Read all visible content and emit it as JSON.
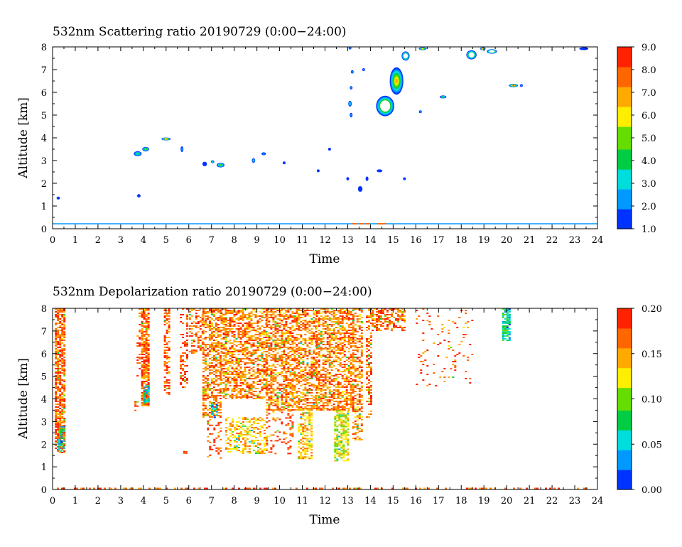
{
  "chart_data": [
    {
      "type": "heatmap",
      "title": "532nm Scattering ratio  20190729 (0:00−24:00)",
      "xlabel": "Time",
      "ylabel": "Altitude [km]",
      "xlim": [
        0,
        24
      ],
      "ylim": [
        0,
        8
      ],
      "x_ticks": [
        "0",
        "1",
        "2",
        "3",
        "4",
        "5",
        "6",
        "7",
        "8",
        "9",
        "10",
        "11",
        "12",
        "13",
        "14",
        "15",
        "16",
        "17",
        "18",
        "19",
        "20",
        "21",
        "22",
        "23",
        "24"
      ],
      "y_ticks": [
        "0",
        "1",
        "2",
        "3",
        "4",
        "5",
        "6",
        "7",
        "8"
      ],
      "colorbar": {
        "min": 1.0,
        "max": 9.0,
        "ticks": [
          "1.0",
          "2.0",
          "3.0",
          "4.0",
          "5.0",
          "6.0",
          "7.0",
          "8.0",
          "9.0"
        ],
        "tick_values": [
          1.0,
          2.0,
          3.0,
          4.0,
          5.0,
          6.0,
          7.0,
          8.0,
          9.0
        ],
        "colors": [
          "#0033ff",
          "#0099ff",
          "#00dddd",
          "#00cc44",
          "#66dd00",
          "#ffee00",
          "#ffaa00",
          "#ff6600",
          "#ff2200"
        ]
      },
      "features": [
        {
          "kind": "line",
          "x0": 0.0,
          "x1": 24.0,
          "y": 0.22,
          "value": 2.5
        },
        {
          "kind": "blob",
          "x": 0.25,
          "y": 1.35,
          "w": 0.15,
          "h": 0.08,
          "value": 2.0
        },
        {
          "kind": "blob",
          "x": 3.8,
          "y": 1.45,
          "w": 0.15,
          "h": 0.15,
          "value": 2.2
        },
        {
          "kind": "blob",
          "x": 3.75,
          "y": 3.3,
          "w": 0.35,
          "h": 0.22,
          "value": 4.5
        },
        {
          "kind": "blob",
          "x": 4.1,
          "y": 3.5,
          "w": 0.3,
          "h": 0.2,
          "value": 5.5
        },
        {
          "kind": "blob",
          "x": 5.0,
          "y": 3.95,
          "w": 0.4,
          "h": 0.1,
          "value": 7.0
        },
        {
          "kind": "blob",
          "x": 5.7,
          "y": 3.5,
          "w": 0.12,
          "h": 0.25,
          "value": 2.5
        },
        {
          "kind": "blob",
          "x": 6.7,
          "y": 2.85,
          "w": 0.2,
          "h": 0.2,
          "value": 2.3
        },
        {
          "kind": "blob",
          "x": 7.05,
          "y": 2.95,
          "w": 0.15,
          "h": 0.12,
          "value": 4.0
        },
        {
          "kind": "blob",
          "x": 7.4,
          "y": 2.8,
          "w": 0.35,
          "h": 0.2,
          "value": 5.0
        },
        {
          "kind": "blob",
          "x": 8.85,
          "y": 3.0,
          "w": 0.15,
          "h": 0.2,
          "value": 3.5
        },
        {
          "kind": "blob",
          "x": 9.3,
          "y": 3.3,
          "w": 0.2,
          "h": 0.12,
          "value": 2.5
        },
        {
          "kind": "blob",
          "x": 10.2,
          "y": 2.9,
          "w": 0.05,
          "h": 0.12,
          "value": 2.0
        },
        {
          "kind": "blob",
          "x": 11.7,
          "y": 2.55,
          "w": 0.05,
          "h": 0.1,
          "value": 2.0
        },
        {
          "kind": "blob",
          "x": 12.2,
          "y": 3.5,
          "w": 0.05,
          "h": 0.12,
          "value": 2.0
        },
        {
          "kind": "blob",
          "x": 13.0,
          "y": 2.2,
          "w": 0.05,
          "h": 0.15,
          "value": 2.0
        },
        {
          "kind": "blob",
          "x": 13.55,
          "y": 1.75,
          "w": 0.2,
          "h": 0.25,
          "value": 2.2
        },
        {
          "kind": "blob",
          "x": 13.85,
          "y": 2.2,
          "w": 0.12,
          "h": 0.2,
          "value": 2.0
        },
        {
          "kind": "blob",
          "x": 14.4,
          "y": 2.55,
          "w": 0.25,
          "h": 0.12,
          "value": 2.2
        },
        {
          "kind": "blob",
          "x": 15.5,
          "y": 2.2,
          "w": 0.05,
          "h": 0.08,
          "value": 2.0
        },
        {
          "kind": "blob",
          "x": 13.1,
          "y": 5.5,
          "w": 0.15,
          "h": 0.25,
          "value": 3.5
        },
        {
          "kind": "blob",
          "x": 13.15,
          "y": 5.0,
          "w": 0.12,
          "h": 0.2,
          "value": 3.0
        },
        {
          "kind": "blob",
          "x": 13.15,
          "y": 6.2,
          "w": 0.05,
          "h": 0.15,
          "value": 2.5
        },
        {
          "kind": "blob",
          "x": 13.2,
          "y": 6.9,
          "w": 0.05,
          "h": 0.15,
          "value": 2.5
        },
        {
          "kind": "blob",
          "x": 13.7,
          "y": 7.0,
          "w": 0.05,
          "h": 0.1,
          "value": 2.5
        },
        {
          "kind": "blob",
          "x": 13.1,
          "y": 7.95,
          "w": 0.08,
          "h": 0.05,
          "value": 2.5
        },
        {
          "kind": "blob",
          "x": 16.2,
          "y": 5.15,
          "w": 0.08,
          "h": 0.08,
          "value": 2.5
        },
        {
          "kind": "blob",
          "x": 17.2,
          "y": 5.8,
          "w": 0.3,
          "h": 0.1,
          "value": 4.5
        },
        {
          "kind": "blob",
          "x": 20.3,
          "y": 6.3,
          "w": 0.4,
          "h": 0.15,
          "value": 8.5
        },
        {
          "kind": "blob",
          "x": 20.65,
          "y": 6.3,
          "w": 0.12,
          "h": 0.1,
          "value": 2.5
        },
        {
          "kind": "blob",
          "x": 23.4,
          "y": 7.92,
          "w": 0.4,
          "h": 0.1,
          "value": 2.0
        },
        {
          "kind": "cloud",
          "x": 14.65,
          "y": 5.4,
          "w": 0.8,
          "h": 0.9,
          "value": 9.0
        },
        {
          "kind": "cloud",
          "x": 15.15,
          "y": 6.5,
          "w": 0.6,
          "h": 1.2,
          "value": 7.5
        },
        {
          "kind": "cloud",
          "x": 15.55,
          "y": 7.6,
          "w": 0.35,
          "h": 0.4,
          "value": 8.0
        },
        {
          "kind": "cloud",
          "x": 16.3,
          "y": 7.92,
          "w": 0.35,
          "h": 0.12,
          "value": 6.0
        },
        {
          "kind": "cloud",
          "x": 18.45,
          "y": 7.65,
          "w": 0.45,
          "h": 0.4,
          "value": 8.5
        },
        {
          "kind": "cloud",
          "x": 19.35,
          "y": 7.8,
          "w": 0.45,
          "h": 0.2,
          "value": 8.0
        },
        {
          "kind": "cloud",
          "x": 18.95,
          "y": 7.92,
          "w": 0.25,
          "h": 0.1,
          "value": 7.0
        }
      ]
    },
    {
      "type": "heatmap",
      "title": "532nm Depolarization ratio  20190729 (0:00−24:00)",
      "xlabel": "Time",
      "ylabel": "Altitude [km]",
      "xlim": [
        0,
        24
      ],
      "ylim": [
        0,
        8
      ],
      "x_ticks": [
        "0",
        "1",
        "2",
        "3",
        "4",
        "5",
        "6",
        "7",
        "8",
        "9",
        "10",
        "11",
        "12",
        "13",
        "14",
        "15",
        "16",
        "17",
        "18",
        "19",
        "20",
        "21",
        "22",
        "23",
        "24"
      ],
      "y_ticks": [
        "0",
        "1",
        "2",
        "3",
        "4",
        "5",
        "6",
        "7",
        "8"
      ],
      "colorbar": {
        "min": 0.0,
        "max": 0.2,
        "ticks": [
          "0.00",
          "0.05",
          "0.10",
          "0.15",
          "0.20"
        ],
        "tick_values": [
          0.0,
          0.05,
          0.1,
          0.15,
          0.2
        ],
        "colors": [
          "#0033ff",
          "#0099ff",
          "#00dddd",
          "#00cc44",
          "#66dd00",
          "#ffee00",
          "#ffaa00",
          "#ff6600",
          "#ff2200"
        ]
      },
      "regions": [
        {
          "x0": 0.1,
          "x1": 0.5,
          "y0": 1.6,
          "y1": 8.0,
          "density": 0.75,
          "value": 0.17
        },
        {
          "x0": 0.25,
          "x1": 0.45,
          "y0": 1.7,
          "y1": 2.8,
          "density": 0.7,
          "value": 0.06
        },
        {
          "x0": 3.6,
          "x1": 3.75,
          "y0": 3.5,
          "y1": 3.9,
          "density": 0.6,
          "value": 0.17
        },
        {
          "x0": 3.7,
          "x1": 3.8,
          "y0": 5.0,
          "y1": 8.0,
          "density": 0.25,
          "value": 0.18
        },
        {
          "x0": 3.9,
          "x1": 4.2,
          "y0": 3.7,
          "y1": 8.0,
          "density": 0.8,
          "value": 0.17
        },
        {
          "x0": 4.0,
          "x1": 4.2,
          "y0": 3.8,
          "y1": 4.6,
          "density": 0.6,
          "value": 0.05
        },
        {
          "x0": 4.9,
          "x1": 5.15,
          "y0": 4.2,
          "y1": 8.0,
          "density": 0.55,
          "value": 0.17
        },
        {
          "x0": 5.6,
          "x1": 5.9,
          "y0": 4.5,
          "y1": 8.0,
          "density": 0.3,
          "value": 0.18
        },
        {
          "x0": 5.75,
          "x1": 5.85,
          "y0": 1.6,
          "y1": 1.7,
          "density": 0.6,
          "value": 0.18
        },
        {
          "x0": 6.0,
          "x1": 6.6,
          "y0": 6.0,
          "y1": 8.0,
          "density": 0.35,
          "value": 0.17
        },
        {
          "x0": 6.6,
          "x1": 7.4,
          "y0": 3.2,
          "y1": 8.0,
          "density": 0.55,
          "value": 0.16
        },
        {
          "x0": 7.0,
          "x1": 7.25,
          "y0": 3.2,
          "y1": 3.9,
          "density": 0.5,
          "value": 0.06
        },
        {
          "x0": 7.4,
          "x1": 9.4,
          "y0": 4.0,
          "y1": 8.0,
          "density": 0.55,
          "value": 0.16
        },
        {
          "x0": 7.6,
          "x1": 9.4,
          "y0": 1.6,
          "y1": 3.2,
          "density": 0.4,
          "value": 0.14
        },
        {
          "x0": 6.8,
          "x1": 7.4,
          "y0": 1.4,
          "y1": 3.3,
          "density": 0.2,
          "value": 0.18
        },
        {
          "x0": 9.4,
          "x1": 11.6,
          "y0": 3.5,
          "y1": 8.0,
          "density": 0.55,
          "value": 0.16
        },
        {
          "x0": 9.4,
          "x1": 10.6,
          "y0": 1.6,
          "y1": 3.5,
          "density": 0.15,
          "value": 0.18
        },
        {
          "x0": 10.8,
          "x1": 11.4,
          "y0": 1.4,
          "y1": 3.6,
          "density": 0.55,
          "value": 0.14
        },
        {
          "x0": 11.6,
          "x1": 13.2,
          "y0": 3.5,
          "y1": 8.0,
          "density": 0.55,
          "value": 0.16
        },
        {
          "x0": 12.4,
          "x1": 13.0,
          "y0": 1.3,
          "y1": 3.5,
          "density": 0.6,
          "value": 0.12
        },
        {
          "x0": 13.2,
          "x1": 13.6,
          "y0": 2.2,
          "y1": 8.0,
          "density": 0.5,
          "value": 0.16
        },
        {
          "x0": 13.8,
          "x1": 14.05,
          "y0": 3.2,
          "y1": 8.0,
          "density": 0.4,
          "value": 0.17
        },
        {
          "x0": 14.05,
          "x1": 15.5,
          "y0": 7.0,
          "y1": 8.0,
          "density": 0.5,
          "value": 0.17
        },
        {
          "x0": 16.0,
          "x1": 18.5,
          "y0": 4.6,
          "y1": 8.0,
          "density": 0.07,
          "value": 0.17
        },
        {
          "x0": 19.8,
          "x1": 20.15,
          "y0": 6.6,
          "y1": 8.0,
          "density": 0.75,
          "value": 0.07
        },
        {
          "x0": 0.0,
          "x1": 24.0,
          "y0": 0.0,
          "y1": 0.08,
          "density": 0.35,
          "value": 0.17
        }
      ]
    }
  ]
}
